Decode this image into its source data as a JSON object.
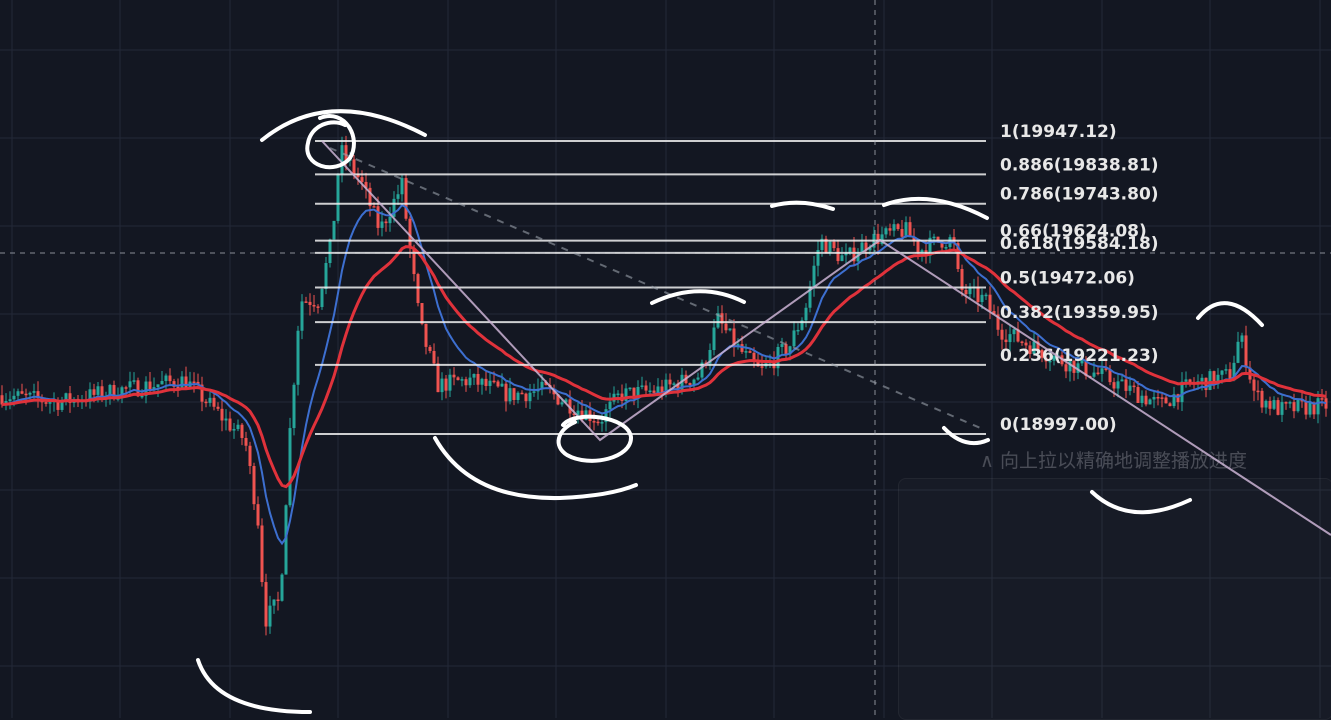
{
  "chart_data": {
    "type": "line",
    "ylim": [
      18900,
      20000
    ],
    "colors": {
      "background": "#131722",
      "up_candle": "#26a69a",
      "down_candle": "#ef5350",
      "slow_ma": "#e0323b",
      "fast_ma": "#3d6fd0",
      "fib_lines": "#f0f0f0",
      "trend_line": "#cbb3d4",
      "annotation_ink": "#ffffff"
    },
    "fib_levels": [
      {
        "label": "1(19947.12)",
        "value": 19947.12
      },
      {
        "label": "0.886(19838.81)",
        "value": 19838.81
      },
      {
        "label": "0.786(19743.80)",
        "value": 19743.8
      },
      {
        "label": "0.66(19624.08)",
        "value": 19624.08
      },
      {
        "label": "0.618(19584.18)",
        "value": 19584.18
      },
      {
        "label": "0.5(19472.06)",
        "value": 19472.06
      },
      {
        "label": "0.382(19359.95)",
        "value": 19359.95
      },
      {
        "label": "0.236(19221.23)",
        "value": 19221.23
      },
      {
        "label": "0(18997.00)",
        "value": 18997.0
      }
    ],
    "crosshair_price": 19584
  },
  "overlay_hint": "∧ 向上拉以精确地调整播放进度"
}
